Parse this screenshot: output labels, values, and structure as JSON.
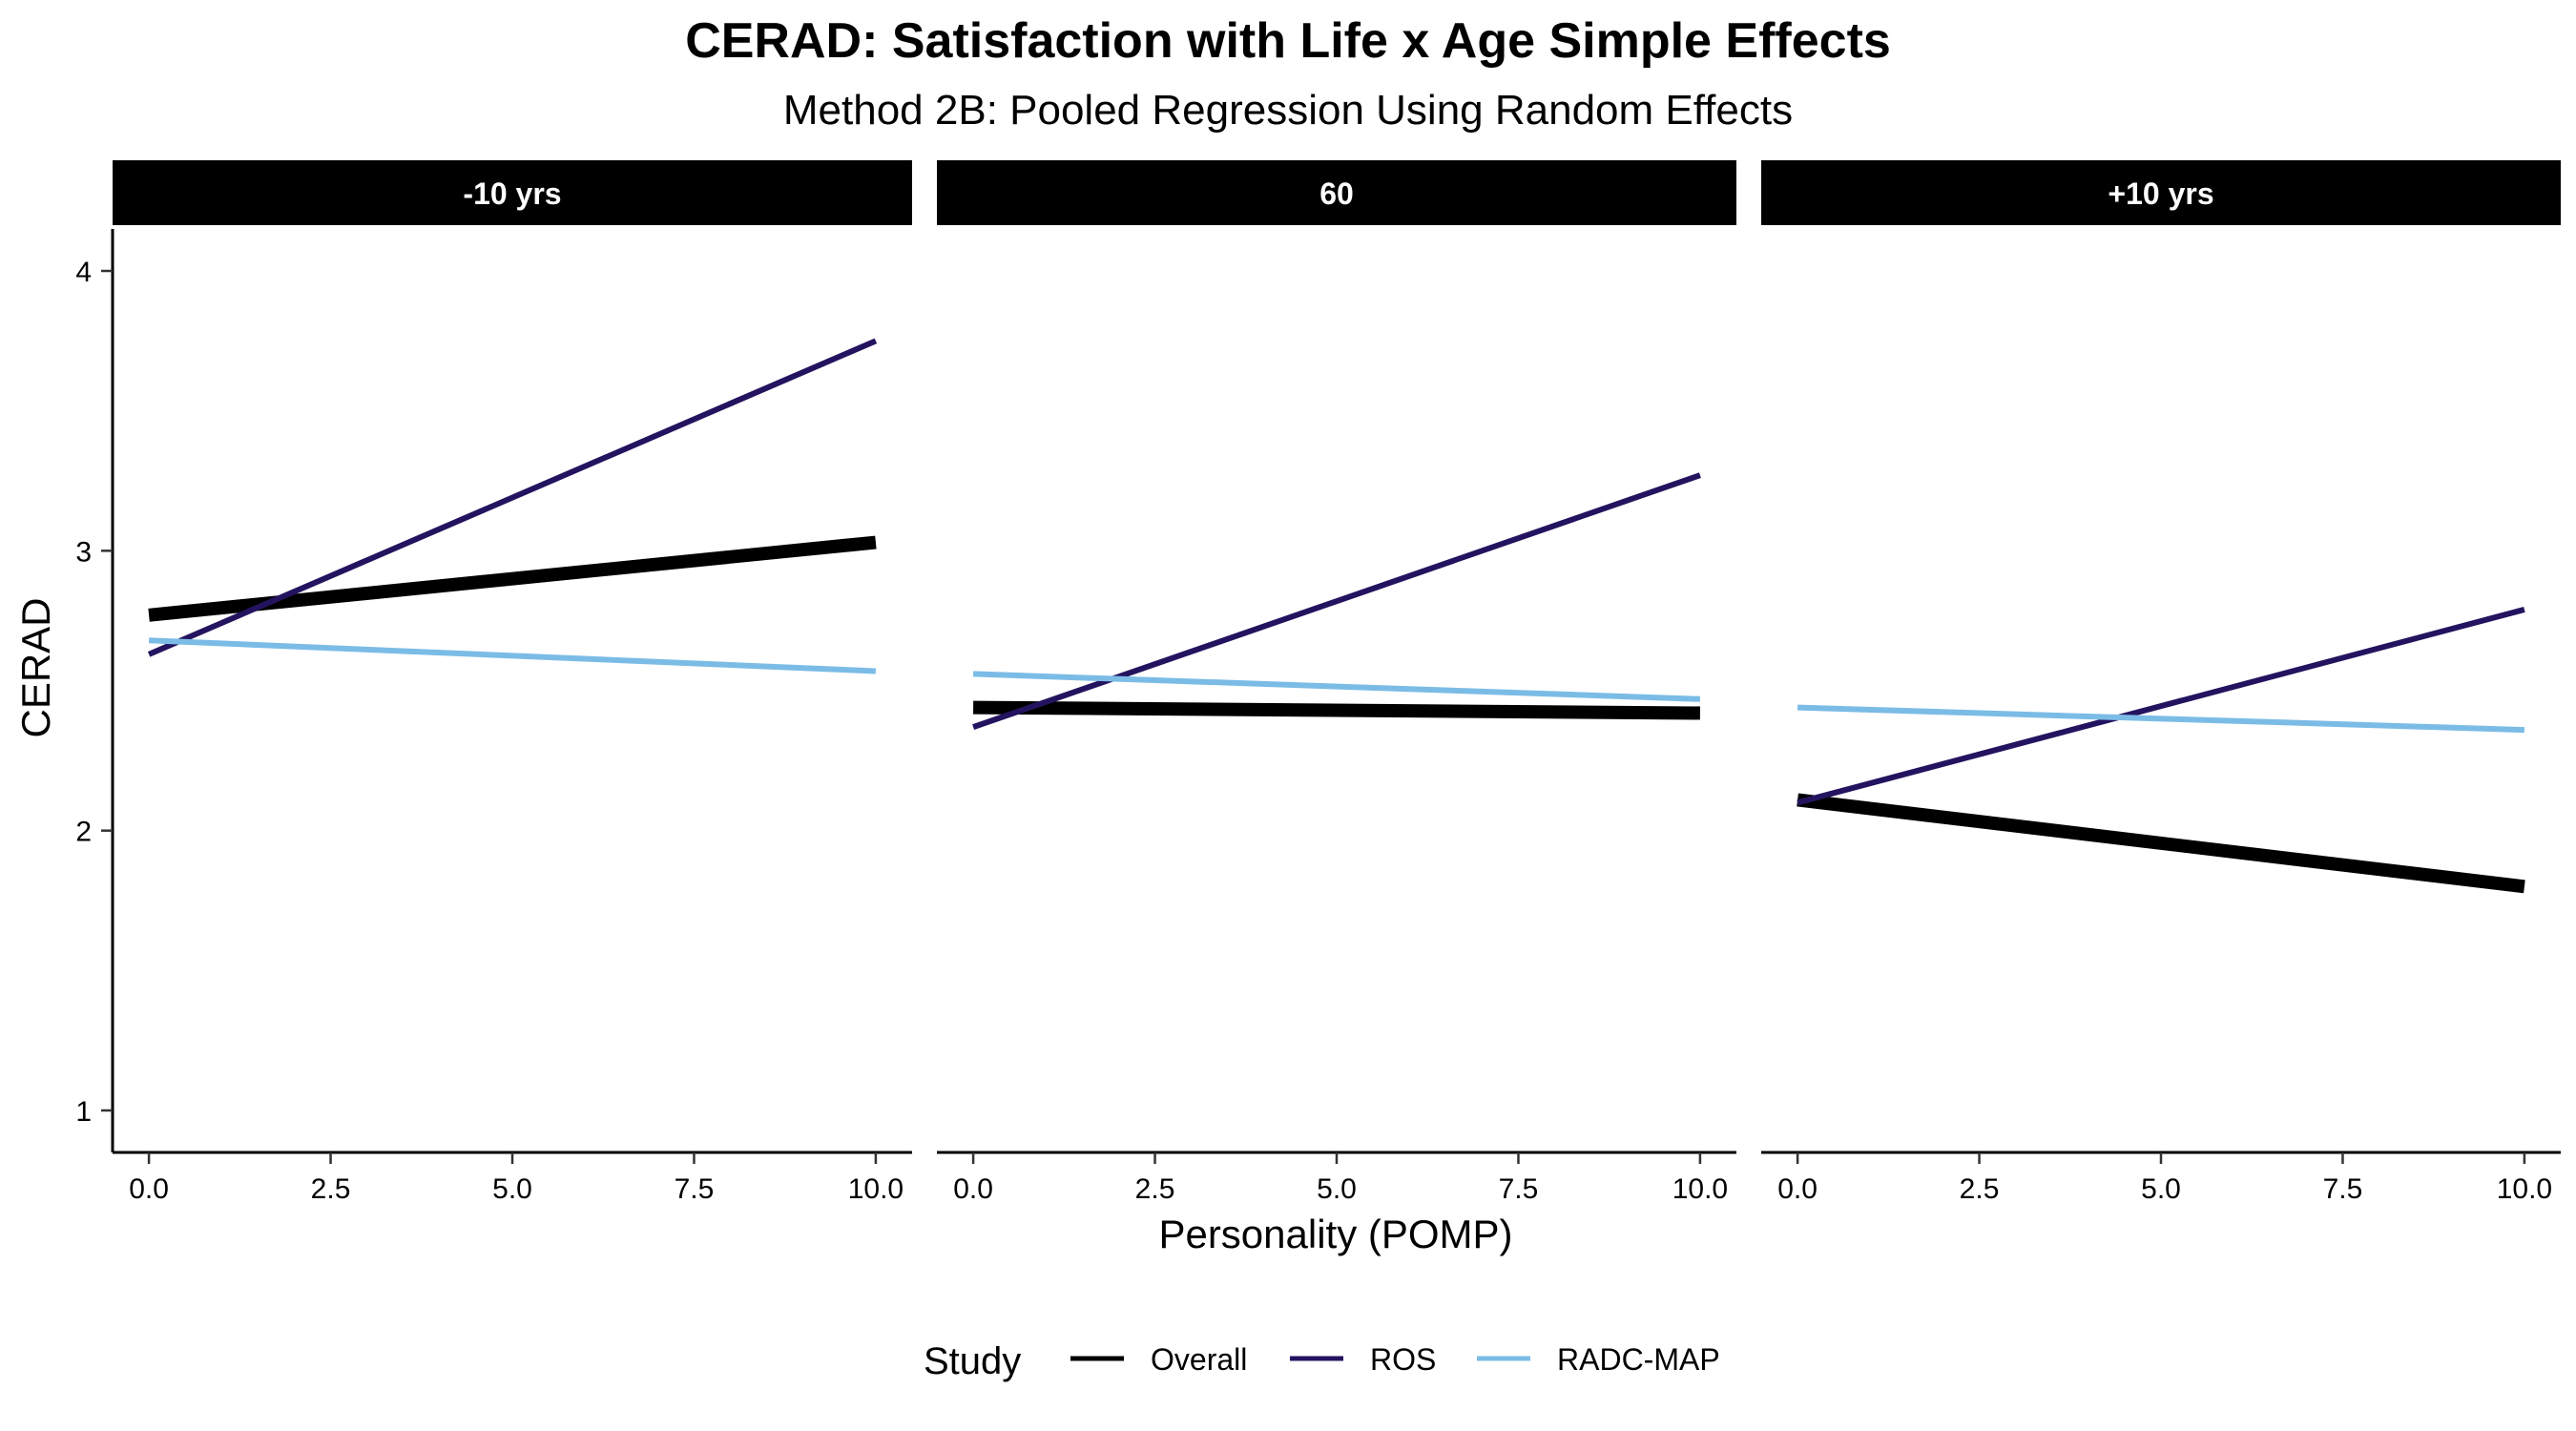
{
  "chart_data": {
    "type": "line",
    "title": "CERAD: Satisfaction with Life x Age Simple Effects",
    "subtitle": "Method 2B: Pooled Regression Using Random Effects",
    "xlabel": "Personality (POMP)",
    "ylabel": "CERAD",
    "xlim": [
      -0.5,
      10.5
    ],
    "ylim": [
      0.85,
      4.15
    ],
    "x_ticks": [
      0,
      2.5,
      5,
      7.5,
      10
    ],
    "x_tick_labels": [
      "0.0",
      "2.5",
      "5.0",
      "7.5",
      "10.0"
    ],
    "y_ticks": [
      1,
      2,
      3,
      4
    ],
    "y_tick_labels": [
      "1",
      "2",
      "3",
      "4"
    ],
    "grid": false,
    "legend": {
      "title": "Study",
      "position": "bottom",
      "entries": [
        {
          "name": "Overall",
          "color": "#000000"
        },
        {
          "name": "ROS",
          "color": "#24135f"
        },
        {
          "name": "RADC-MAP",
          "color": "#7bbce6"
        }
      ]
    },
    "panels": [
      {
        "label": "-10 yrs",
        "series": [
          {
            "name": "Overall",
            "x": [
              0,
              10
            ],
            "y": [
              2.77,
              3.03
            ]
          },
          {
            "name": "ROS",
            "x": [
              0,
              10
            ],
            "y": [
              2.63,
              3.75
            ]
          },
          {
            "name": "RADC-MAP",
            "x": [
              0,
              10
            ],
            "y": [
              2.68,
              2.57
            ]
          }
        ]
      },
      {
        "label": "60",
        "series": [
          {
            "name": "Overall",
            "x": [
              0,
              10
            ],
            "y": [
              2.44,
              2.42
            ]
          },
          {
            "name": "ROS",
            "x": [
              0,
              10
            ],
            "y": [
              2.37,
              3.27
            ]
          },
          {
            "name": "RADC-MAP",
            "x": [
              0,
              10
            ],
            "y": [
              2.56,
              2.47
            ]
          }
        ]
      },
      {
        "label": "+10 yrs",
        "series": [
          {
            "name": "Overall",
            "x": [
              0,
              10
            ],
            "y": [
              2.11,
              1.8
            ]
          },
          {
            "name": "ROS",
            "x": [
              0,
              10
            ],
            "y": [
              2.1,
              2.79
            ]
          },
          {
            "name": "RADC-MAP",
            "x": [
              0,
              10
            ],
            "y": [
              2.44,
              2.36
            ]
          }
        ]
      }
    ]
  }
}
